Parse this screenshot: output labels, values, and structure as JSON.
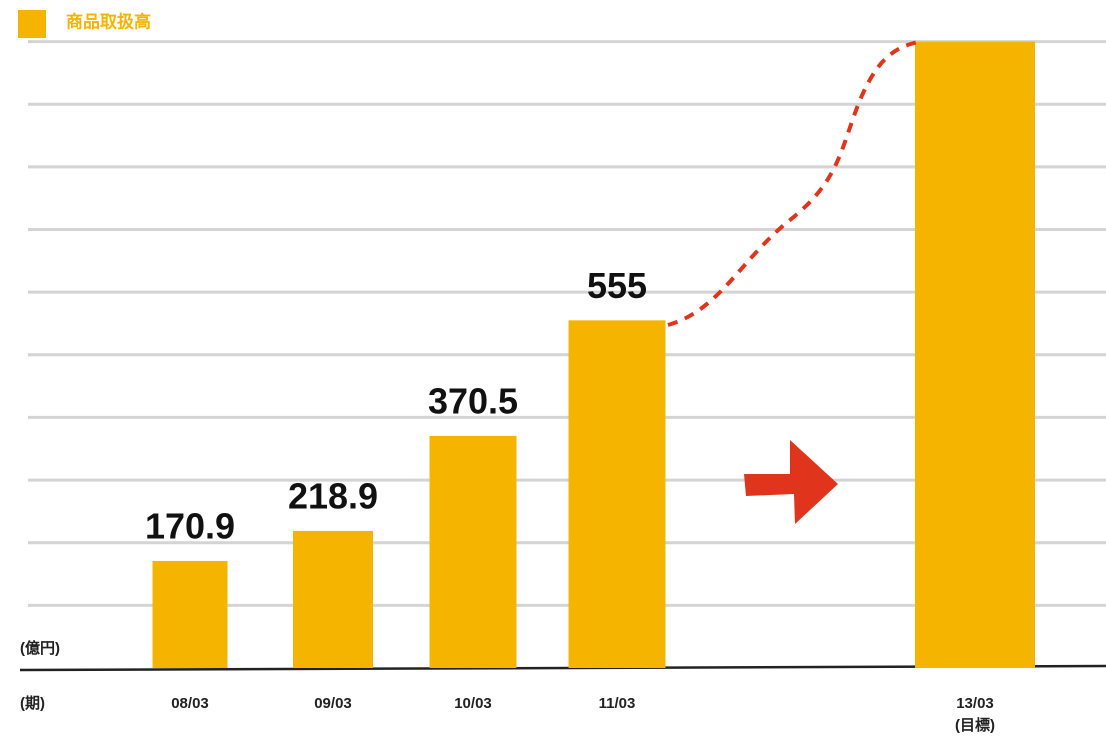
{
  "chart_data": {
    "type": "bar",
    "y_unit_label": "(億円)",
    "x_axis_label": "(期)",
    "categories": [
      "08/03",
      "09/03",
      "10/03",
      "11/03",
      null,
      "13/03"
    ],
    "category_note": "(目標)",
    "series": [
      {
        "name": "商品取扱高",
        "color": "#f5b400",
        "values": [
          170.9,
          218.9,
          370.5,
          555,
          null,
          1000
        ],
        "value_labels": [
          "170.9",
          "218.9",
          "370.5",
          "555",
          null,
          null
        ]
      }
    ],
    "ylim": [
      0,
      1060
    ],
    "yticks": [
      0,
      100,
      200,
      300,
      400,
      500,
      600,
      700,
      800,
      900,
      1000
    ],
    "grid": true,
    "connector_color": "#e0341c"
  }
}
